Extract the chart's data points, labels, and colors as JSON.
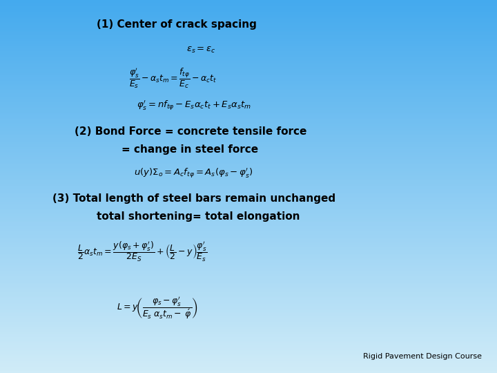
{
  "title1": "(1) Center of crack spacing",
  "title2_line1": "(2) Bond Force = concrete tensile force",
  "title2_line2": "= change in steel force",
  "title3_line1": "(3) Total length of steel bars remain unchanged",
  "title3_line2": "total shortening= total elongation",
  "footer": "Rigid Pavement Design Course",
  "eq1": "$\\varepsilon_s = \\varepsilon_c$",
  "eq2": "$\\dfrac{\\varphi_s^{\\prime}}{E_s} - \\alpha_s t_m = \\dfrac{f_{t\\varphi}}{E_c} - \\alpha_c t_t$",
  "eq3": "$\\varphi_s^{\\prime} = nf_{t\\varphi} - E_s\\alpha_c t_t + E_s\\alpha_s t_m$",
  "eq4": "$u(y)\\Sigma_o = A_c f_{t\\varphi} = A_s(\\varphi_s - \\varphi_s^{\\prime})$",
  "eq5": "$\\dfrac{L}{2}\\alpha_s t_m = \\dfrac{y(\\varphi_s + \\varphi_s^{\\prime})}{2E_S} + \\left(\\dfrac{L}{2} - y\\right)\\dfrac{\\varphi_s^{\\prime}}{E_s}$",
  "eq6": "$L = y\\!\\left(\\dfrac{\\varphi_s - \\varphi_s^{\\prime}}{E_s\\;\\alpha_s t_m -\\;\\acute{\\varphi}}\\right)$",
  "bg_color_top": "#44aaee",
  "bg_color_bottom": "#d0ecf8",
  "title_fontsize": 11,
  "eq_fontsize": 9.5,
  "eq2_fontsize": 9.0,
  "title3_fontsize": 11,
  "footer_fontsize": 8
}
